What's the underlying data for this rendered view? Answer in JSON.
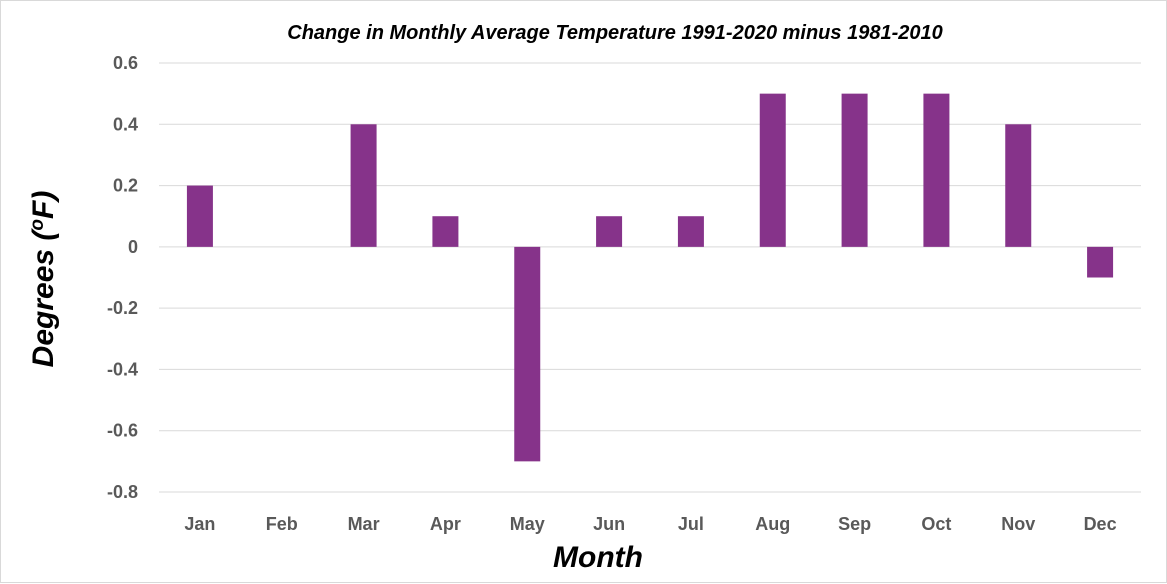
{
  "chart_data": {
    "type": "bar",
    "title": "Change in Monthly Average Temperature 1991-2020 minus 1981-2010",
    "xlabel": "Month",
    "ylabel_main": "Degrees (",
    "ylabel_sup": "o",
    "ylabel_end": "F)",
    "categories": [
      "Jan",
      "Feb",
      "Mar",
      "Apr",
      "May",
      "Jun",
      "Jul",
      "Aug",
      "Sep",
      "Oct",
      "Nov",
      "Dec"
    ],
    "values": [
      0.2,
      0,
      0.4,
      0.1,
      -0.7,
      0.1,
      0.1,
      0.5,
      0.5,
      0.5,
      0.4,
      -0.1
    ],
    "ylim": [
      -0.8,
      0.6
    ],
    "yticks": [
      0.6,
      0.4,
      0.2,
      0,
      -0.2,
      -0.4,
      -0.6,
      -0.8
    ],
    "ytick_labels": [
      "0.6",
      "0.4",
      "0.2",
      "0",
      "-0.2",
      "-0.4",
      "-0.6",
      "-0.8"
    ],
    "grid": true,
    "bar_color": "#86338A"
  }
}
